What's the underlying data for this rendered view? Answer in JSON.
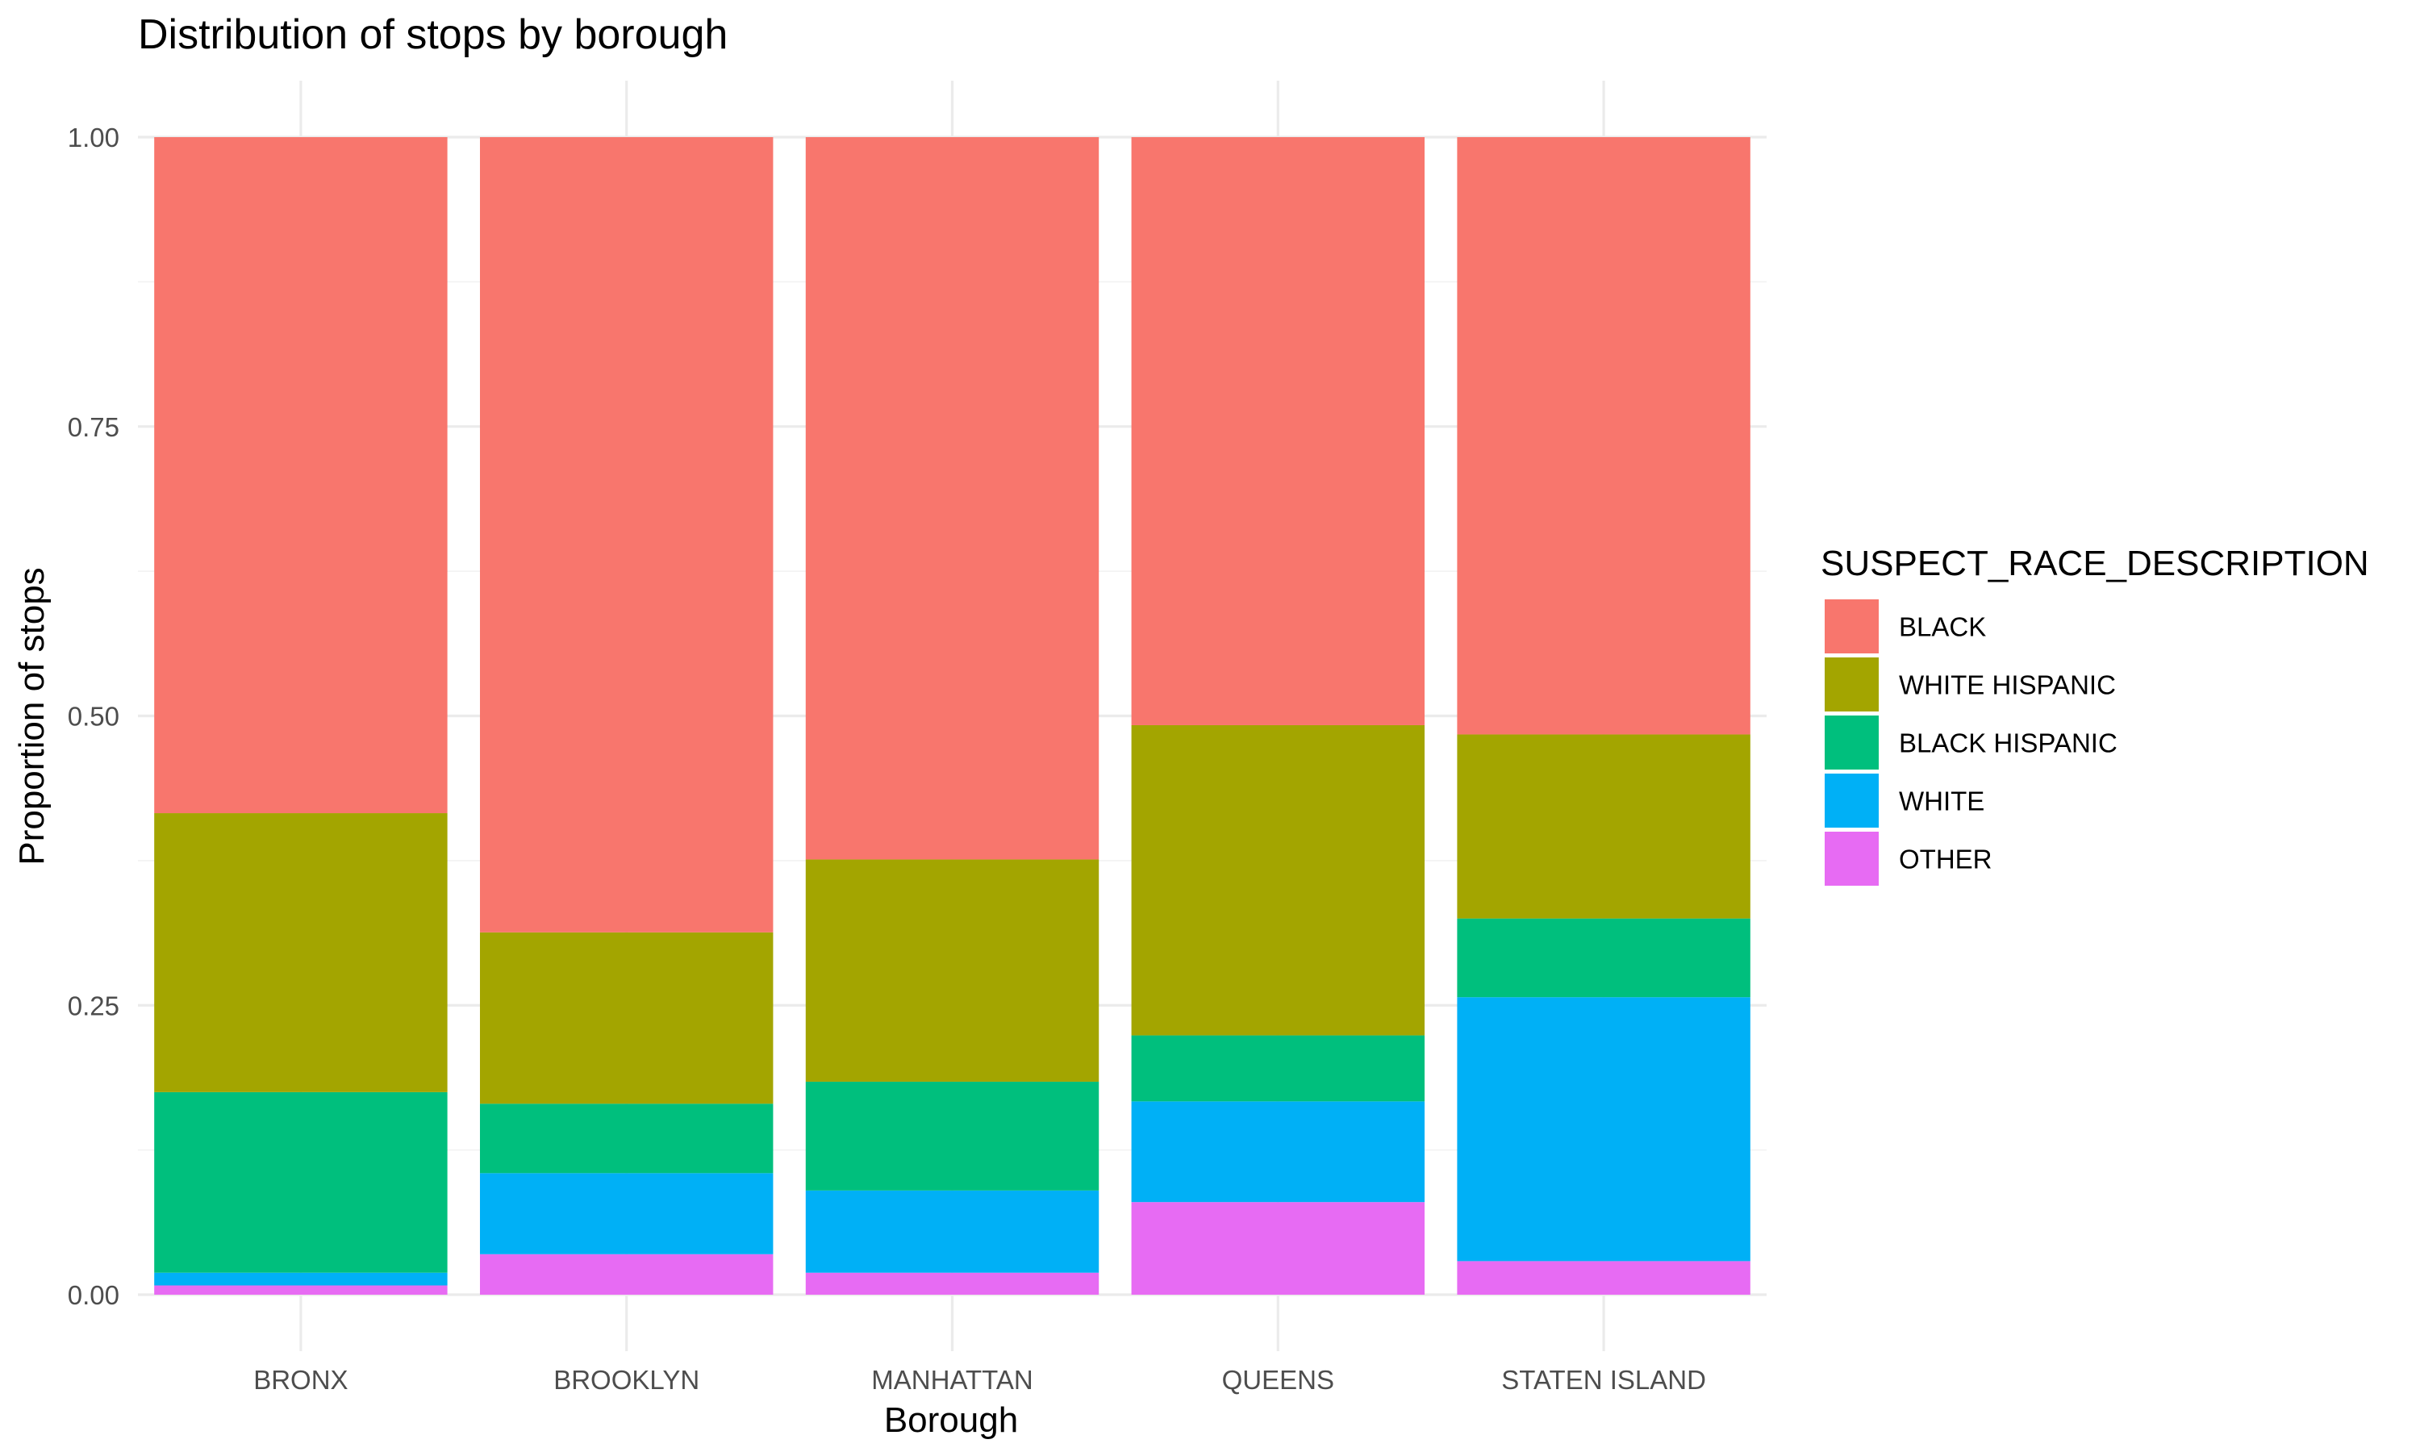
{
  "chart_data": {
    "type": "bar",
    "stacked": true,
    "title": "Distribution of stops by borough",
    "xlabel": "Borough",
    "ylabel": "Proportion of stops",
    "ylim": [
      0,
      1
    ],
    "yticks": [
      0,
      0.25,
      0.5,
      0.75,
      1
    ],
    "ytick_labels": [
      "0.00",
      "0.25",
      "0.50",
      "0.75",
      "1.00"
    ],
    "grid": true,
    "legend": {
      "title": "SUSPECT_RACE_DESCRIPTION",
      "position": "right"
    },
    "categories": [
      "BRONX",
      "BROOKLYN",
      "MANHATTAN",
      "QUEENS",
      "STATEN ISLAND"
    ],
    "series": [
      {
        "name": "OTHER",
        "color": "#E76BF3",
        "values": [
          0.008,
          0.035,
          0.019,
          0.08,
          0.029
        ]
      },
      {
        "name": "WHITE",
        "color": "#00B0F6",
        "values": [
          0.011,
          0.07,
          0.071,
          0.087,
          0.228
        ]
      },
      {
        "name": "BLACK HISPANIC",
        "color": "#00BF7D",
        "values": [
          0.156,
          0.06,
          0.094,
          0.057,
          0.068
        ]
      },
      {
        "name": "WHITE HISPANIC",
        "color": "#A3A500",
        "values": [
          0.241,
          0.148,
          0.192,
          0.268,
          0.159
        ]
      },
      {
        "name": "BLACK",
        "color": "#F8766D",
        "values": [
          0.584,
          0.687,
          0.624,
          0.508,
          0.516
        ]
      }
    ],
    "legend_order": [
      "BLACK",
      "WHITE HISPANIC",
      "BLACK HISPANIC",
      "WHITE",
      "OTHER"
    ]
  }
}
